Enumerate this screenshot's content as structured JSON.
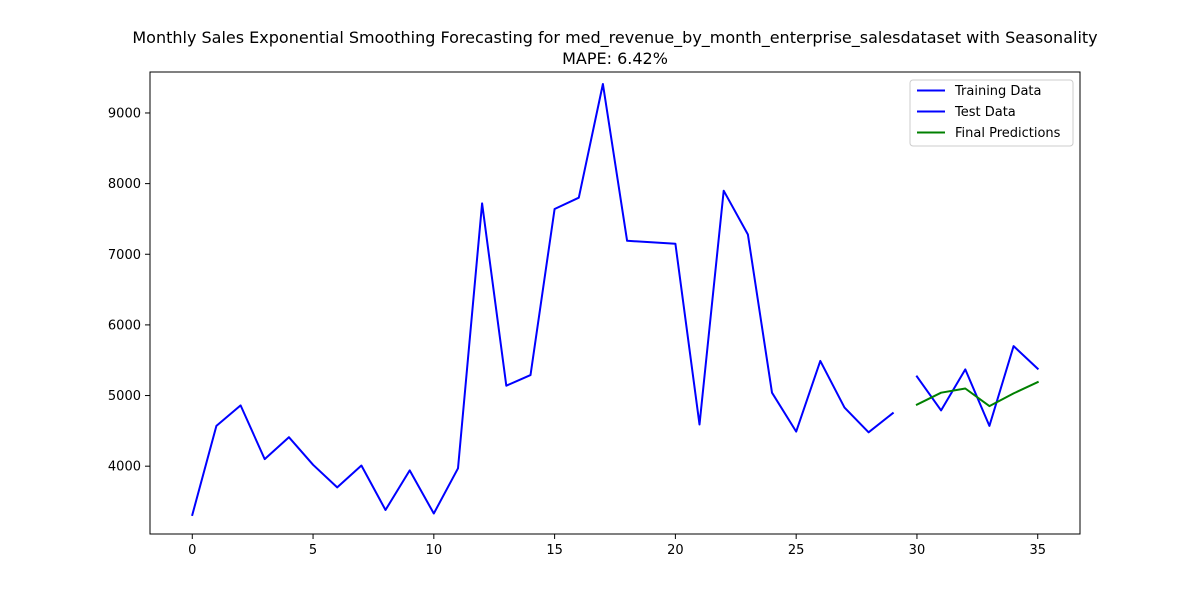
{
  "chart_data": {
    "type": "line",
    "title": "Monthly Sales Exponential Smoothing Forecasting for med_revenue_by_month_enterprise_salesdataset with Seasonality",
    "subtitle": "MAPE: 6.42%",
    "xlabel": "",
    "ylabel": "",
    "xlim": [
      -1.75,
      36.75
    ],
    "ylim": [
      3040,
      9580
    ],
    "x_ticks": [
      0,
      5,
      10,
      15,
      20,
      25,
      30,
      35
    ],
    "y_ticks": [
      4000,
      5000,
      6000,
      7000,
      8000,
      9000
    ],
    "grid": false,
    "legend_position": "top-right",
    "series": [
      {
        "name": "Training Data",
        "color": "#0000ff",
        "x": [
          0,
          1,
          2,
          3,
          4,
          5,
          6,
          7,
          8,
          9,
          10,
          11,
          12,
          13,
          14,
          15,
          16,
          17,
          18,
          19,
          20,
          21,
          22,
          23,
          24,
          25,
          26,
          27,
          28,
          29
        ],
        "y": [
          3310,
          4570,
          4860,
          4100,
          4410,
          4020,
          3700,
          4010,
          3380,
          3940,
          3330,
          3970,
          7720,
          5140,
          5290,
          7640,
          7800,
          9410,
          7190,
          7170,
          7150,
          4590,
          7900,
          7280,
          5040,
          4490,
          5490,
          4830,
          4480,
          4750
        ]
      },
      {
        "name": "Test Data",
        "color": "#0000ff",
        "x": [
          30,
          31,
          32,
          33,
          34,
          35
        ],
        "y": [
          5270,
          4790,
          5370,
          4570,
          5700,
          5380
        ]
      },
      {
        "name": "Final Predictions",
        "color": "#008000",
        "x": [
          30,
          31,
          32,
          33,
          34,
          35
        ],
        "y": [
          4870,
          5040,
          5100,
          4850,
          5030,
          5190
        ]
      }
    ]
  }
}
